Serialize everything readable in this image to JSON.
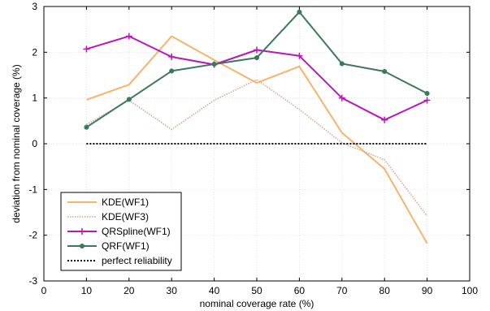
{
  "chart_data": {
    "type": "line",
    "xlabel": "nominal coverage rate (%)",
    "ylabel": "deviation from nominal coverage (%)",
    "xlim": [
      0,
      100
    ],
    "ylim": [
      -3,
      3
    ],
    "x_ticks": [
      0,
      10,
      20,
      30,
      40,
      50,
      60,
      70,
      80,
      90,
      100
    ],
    "y_ticks": [
      -3,
      -2,
      -1,
      0,
      1,
      2,
      3
    ],
    "grid": true,
    "legend_position": "bottom-left",
    "x": [
      10,
      20,
      30,
      40,
      50,
      60,
      70,
      80,
      90
    ],
    "series": [
      {
        "name": "KDE(WF1)",
        "color": "#f7b36a",
        "style": "solid",
        "marker": "none",
        "values": [
          0.96,
          1.29,
          2.35,
          1.83,
          1.33,
          1.69,
          0.24,
          -0.55,
          -2.18
        ]
      },
      {
        "name": "KDE(WF3)",
        "color": "#d8a28e",
        "style": "dotted",
        "marker": "none",
        "values": [
          0.42,
          0.95,
          0.31,
          0.95,
          1.4,
          0.75,
          0.02,
          -0.35,
          -1.58
        ]
      },
      {
        "name": "QRSpline(WF1)",
        "color": "#bb16bb",
        "style": "solid",
        "marker": "plus",
        "values": [
          2.07,
          2.35,
          1.9,
          1.73,
          2.05,
          1.92,
          1.0,
          0.52,
          0.95
        ]
      },
      {
        "name": "QRF(WF1)",
        "color": "#3a7a5c",
        "style": "solid",
        "marker": "dot",
        "values": [
          0.36,
          0.97,
          1.59,
          1.74,
          1.88,
          2.88,
          1.75,
          1.58,
          1.1
        ]
      },
      {
        "name": "perfect reliability",
        "color": "#000000",
        "style": "dotted",
        "marker": "none",
        "values": [
          0,
          0,
          0,
          0,
          0,
          0,
          0,
          0,
          0
        ]
      }
    ]
  }
}
